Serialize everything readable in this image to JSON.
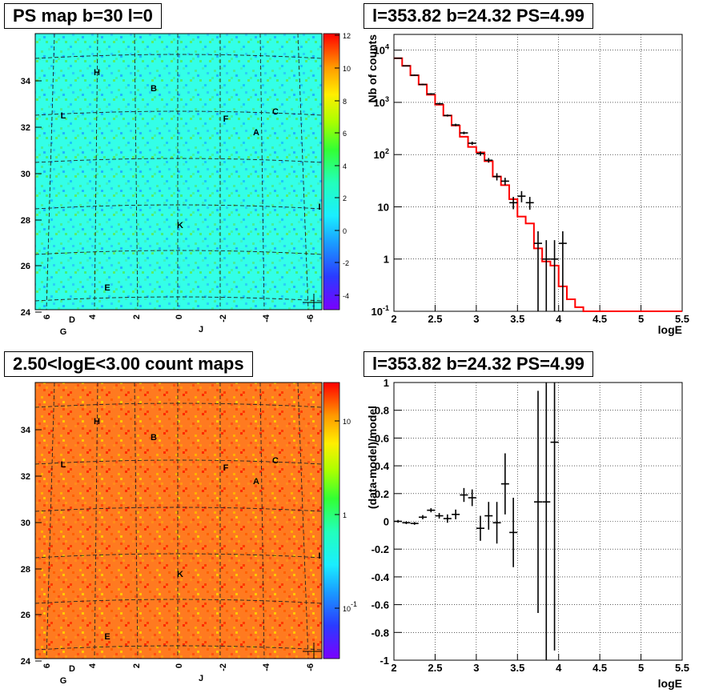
{
  "panels": {
    "map1_title": "PS map b=30 l=0",
    "spec_title": "l=353.82 b=24.32 PS=4.99",
    "map2_title": "2.50<logE<3.00 count maps",
    "resid_title": "l=353.82 b=24.32 PS=4.99"
  },
  "colors": {
    "map1_base": "#33ffe8",
    "map2_base": "#ff7a20",
    "model_line": "#ff0000",
    "data_points": "#000000",
    "grid": "#000000"
  },
  "map_axes": {
    "y_ticks": [
      "24",
      "26",
      "28",
      "30",
      "32",
      "34"
    ],
    "x_ticks": [
      "6",
      "4",
      "2",
      "0",
      "-2",
      "-4",
      "-6"
    ]
  },
  "map_labels": [
    {
      "text": "H"
    },
    {
      "text": "B"
    },
    {
      "text": "L"
    },
    {
      "text": "F"
    },
    {
      "text": "C"
    },
    {
      "text": "A"
    },
    {
      "text": "I"
    },
    {
      "text": "K"
    },
    {
      "text": "E"
    },
    {
      "text": "D"
    },
    {
      "text": "J"
    },
    {
      "text": "G"
    }
  ],
  "colorbar1": {
    "ticks": [
      "12",
      "10",
      "8",
      "6",
      "4",
      "2",
      "0",
      "-2",
      "-4"
    ]
  },
  "colorbar2": {
    "ticks": [
      "10",
      "1",
      "10-1"
    ]
  },
  "chart_data": [
    {
      "type": "heatmap",
      "title": "PS map b=30 l=0",
      "x_ticks": [
        "6",
        "4",
        "2",
        "0",
        "-2",
        "-4",
        "-6"
      ],
      "y_ticks": [
        24,
        26,
        28,
        30,
        32,
        34
      ],
      "zlim": [
        -5,
        12
      ],
      "colorbar_ticks": [
        12,
        10,
        8,
        6,
        4,
        2,
        0,
        -2,
        -4
      ],
      "source_labels": [
        "H",
        "B",
        "L",
        "F",
        "C",
        "A",
        "I",
        "K",
        "E",
        "D",
        "J",
        "G"
      ]
    },
    {
      "type": "line",
      "title": "l=353.82 b=24.32 PS=4.99",
      "xlabel": "logE",
      "ylabel": "Nb of counts",
      "xlim": [
        2,
        5.5
      ],
      "ylim": [
        0.1,
        20000
      ],
      "log_y": true,
      "grid": true,
      "x_ticks": [
        "2",
        "2.5",
        "3",
        "3.5",
        "4",
        "4.5",
        "5",
        "5.5"
      ],
      "y_ticks": [
        "10-1",
        "1",
        "10",
        "10^2",
        "10^3",
        "10^4"
      ],
      "model_bins": [
        {
          "lo": 2.0,
          "hi": 2.1,
          "y": 7000
        },
        {
          "lo": 2.1,
          "hi": 2.2,
          "y": 5000
        },
        {
          "lo": 2.2,
          "hi": 2.3,
          "y": 3300
        },
        {
          "lo": 2.3,
          "hi": 2.4,
          "y": 2200
        },
        {
          "lo": 2.4,
          "hi": 2.5,
          "y": 1400
        },
        {
          "lo": 2.5,
          "hi": 2.6,
          "y": 900
        },
        {
          "lo": 2.6,
          "hi": 2.7,
          "y": 560
        },
        {
          "lo": 2.7,
          "hi": 2.8,
          "y": 360
        },
        {
          "lo": 2.8,
          "hi": 2.9,
          "y": 220
        },
        {
          "lo": 2.9,
          "hi": 3.0,
          "y": 140
        },
        {
          "lo": 3.0,
          "hi": 3.1,
          "y": 110
        },
        {
          "lo": 3.1,
          "hi": 3.2,
          "y": 75
        },
        {
          "lo": 3.2,
          "hi": 3.3,
          "y": 38
        },
        {
          "lo": 3.3,
          "hi": 3.4,
          "y": 26
        },
        {
          "lo": 3.4,
          "hi": 3.5,
          "y": 14
        },
        {
          "lo": 3.5,
          "hi": 3.6,
          "y": 6.5
        },
        {
          "lo": 3.6,
          "hi": 3.7,
          "y": 4.8
        },
        {
          "lo": 3.7,
          "hi": 3.8,
          "y": 1.6
        },
        {
          "lo": 3.8,
          "hi": 3.9,
          "y": 0.9
        },
        {
          "lo": 3.9,
          "hi": 4.0,
          "y": 0.75
        },
        {
          "lo": 4.0,
          "hi": 4.1,
          "y": 0.3
        },
        {
          "lo": 4.1,
          "hi": 4.2,
          "y": 0.17
        },
        {
          "lo": 4.2,
          "hi": 4.3,
          "y": 0.12
        },
        {
          "lo": 4.3,
          "hi": 5.5,
          "y": 0.1
        }
      ],
      "data_points": [
        {
          "x": 2.05,
          "y": 7000,
          "lo": 6850,
          "hi": 7150
        },
        {
          "x": 2.15,
          "y": 5000,
          "lo": 4880,
          "hi": 5120
        },
        {
          "x": 2.25,
          "y": 3300,
          "lo": 3200,
          "hi": 3400
        },
        {
          "x": 2.35,
          "y": 2200,
          "lo": 2130,
          "hi": 2270
        },
        {
          "x": 2.45,
          "y": 1450,
          "lo": 1400,
          "hi": 1500
        },
        {
          "x": 2.55,
          "y": 940,
          "lo": 900,
          "hi": 980
        },
        {
          "x": 2.65,
          "y": 560,
          "lo": 535,
          "hi": 585
        },
        {
          "x": 2.75,
          "y": 370,
          "lo": 350,
          "hi": 390
        },
        {
          "x": 2.85,
          "y": 260,
          "lo": 245,
          "hi": 275
        },
        {
          "x": 2.95,
          "y": 165,
          "lo": 153,
          "hi": 177
        },
        {
          "x": 3.05,
          "y": 105,
          "lo": 95,
          "hi": 115
        },
        {
          "x": 3.15,
          "y": 78,
          "lo": 70,
          "hi": 86
        },
        {
          "x": 3.25,
          "y": 38,
          "lo": 32,
          "hi": 44
        },
        {
          "x": 3.35,
          "y": 31,
          "lo": 26,
          "hi": 36
        },
        {
          "x": 3.45,
          "y": 12,
          "lo": 9,
          "hi": 15.5
        },
        {
          "x": 3.55,
          "y": 16,
          "lo": 12.2,
          "hi": 20
        },
        {
          "x": 3.65,
          "y": 12,
          "lo": 8.8,
          "hi": 15.5
        },
        {
          "x": 3.75,
          "y": 2,
          "lo": 0.1,
          "hi": 3.4
        },
        {
          "x": 3.85,
          "y": 1,
          "lo": 0.1,
          "hi": 2.3
        },
        {
          "x": 3.95,
          "y": 1,
          "lo": 0.1,
          "hi": 2.3
        },
        {
          "x": 4.05,
          "y": 2,
          "lo": 0.1,
          "hi": 3.4
        }
      ]
    },
    {
      "type": "scatter",
      "title": "l=353.82 b=24.32 PS=4.99",
      "xlabel": "logE",
      "ylabel": "(data-model)/model",
      "xlim": [
        2,
        5.5
      ],
      "ylim": [
        -1,
        1
      ],
      "grid": true,
      "x_ticks": [
        "2",
        "2.5",
        "3",
        "3.5",
        "4",
        "4.5",
        "5",
        "5.5"
      ],
      "y_ticks": [
        "-1",
        "-0.8",
        "-0.6",
        "-0.4",
        "-0.2",
        "0",
        "0.2",
        "0.4",
        "0.6",
        "0.8",
        "1"
      ],
      "points": [
        {
          "x": 2.05,
          "y": 0.0,
          "err": 0.01
        },
        {
          "x": 2.15,
          "y": -0.01,
          "err": 0.01
        },
        {
          "x": 2.25,
          "y": -0.015,
          "err": 0.01
        },
        {
          "x": 2.35,
          "y": 0.03,
          "err": 0.015
        },
        {
          "x": 2.45,
          "y": 0.08,
          "err": 0.015
        },
        {
          "x": 2.55,
          "y": 0.04,
          "err": 0.02
        },
        {
          "x": 2.65,
          "y": 0.02,
          "err": 0.03
        },
        {
          "x": 2.75,
          "y": 0.05,
          "err": 0.035
        },
        {
          "x": 2.85,
          "y": 0.19,
          "err": 0.05
        },
        {
          "x": 2.95,
          "y": 0.17,
          "err": 0.06
        },
        {
          "x": 3.05,
          "y": -0.05,
          "err": 0.09
        },
        {
          "x": 3.15,
          "y": 0.04,
          "err": 0.1
        },
        {
          "x": 3.25,
          "y": -0.01,
          "err": 0.15
        },
        {
          "x": 3.35,
          "y": 0.27,
          "err": 0.22
        },
        {
          "x": 3.45,
          "y": -0.08,
          "err": 0.25
        },
        {
          "x": 3.75,
          "y": 0.14,
          "err": 0.8
        },
        {
          "x": 3.85,
          "y": 0.14,
          "err": 1.2
        },
        {
          "x": 3.95,
          "y": 0.57,
          "err": 1.5
        }
      ]
    }
  ]
}
